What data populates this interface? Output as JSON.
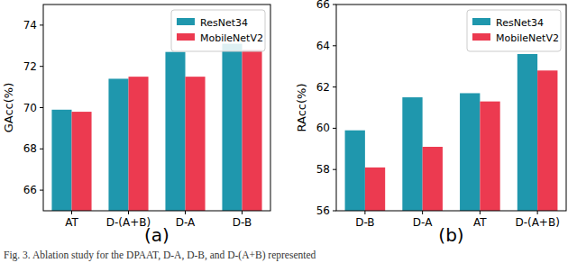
{
  "chart_data": [
    {
      "type": "bar",
      "title": "(a)",
      "y_label": "GAcc(%)",
      "categories": [
        "AT",
        "D-(A+B)",
        "D-A",
        "D-B"
      ],
      "series": [
        {
          "name": "ResNet34",
          "color": "#1f97ad",
          "values": [
            69.9,
            71.4,
            72.7,
            73.1
          ]
        },
        {
          "name": "MobileNetV2",
          "color": "#ec3a50",
          "values": [
            69.8,
            71.5,
            71.5,
            72.8
          ]
        }
      ],
      "ylim": [
        65,
        75
      ],
      "yticks": [
        66,
        68,
        70,
        72,
        74
      ],
      "grid": false,
      "legend": "upper right"
    },
    {
      "type": "bar",
      "title": "(b)",
      "y_label": "RAcc(%)",
      "categories": [
        "D-B",
        "D-A",
        "AT",
        "D-(A+B)"
      ],
      "series": [
        {
          "name": "ResNet34",
          "color": "#1f97ad",
          "values": [
            59.9,
            61.5,
            61.7,
            63.6
          ]
        },
        {
          "name": "MobileNetV2",
          "color": "#ec3a50",
          "values": [
            58.1,
            59.1,
            61.3,
            62.8
          ]
        }
      ],
      "ylim": [
        56,
        66
      ],
      "yticks": [
        56,
        58,
        60,
        62,
        64,
        66
      ],
      "grid": false,
      "legend": "upper right"
    }
  ],
  "caption": "Fig. 3.  Ablation study for the DPAAT, D-A, D-B, and D-(A+B) represented"
}
